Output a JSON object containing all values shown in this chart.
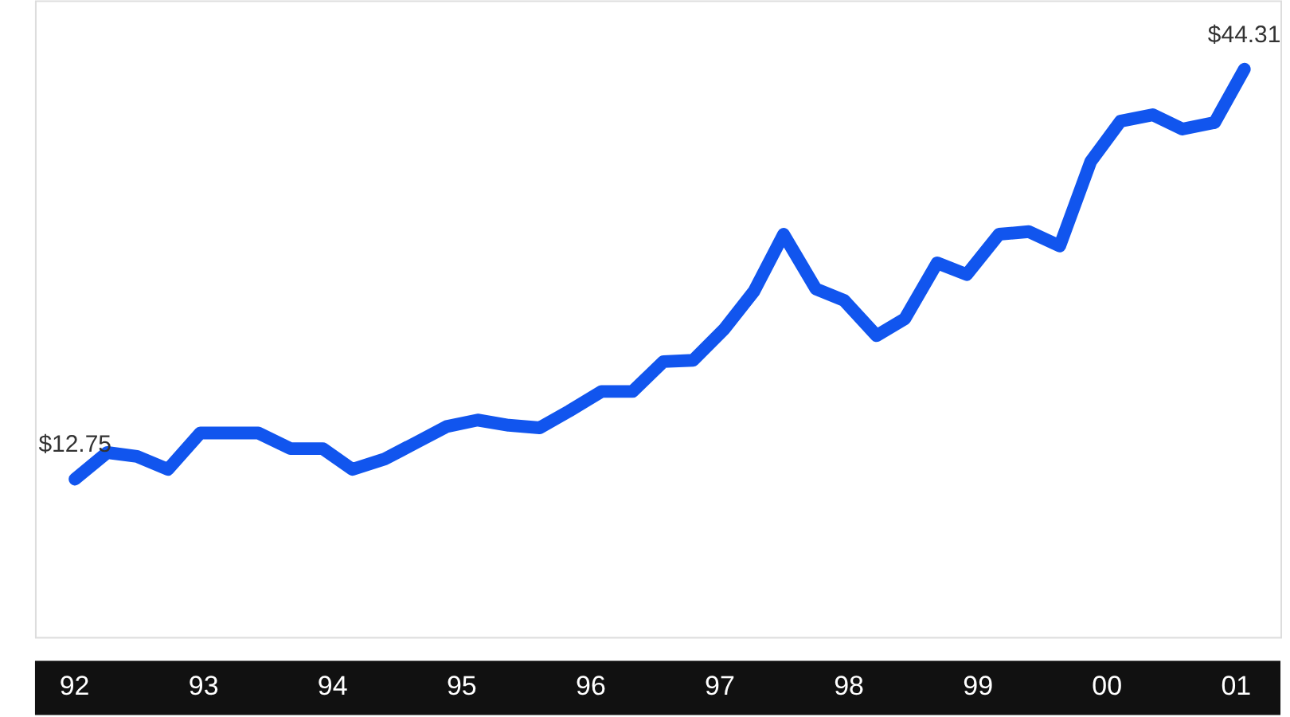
{
  "chart_data": {
    "type": "line",
    "x": [
      1992.01,
      1992.26,
      1992.49,
      1992.73,
      1992.98,
      1993.21,
      1993.43,
      1993.68,
      1993.93,
      1994.16,
      1994.41,
      1994.66,
      1994.89,
      1995.13,
      1995.37,
      1995.61,
      1995.84,
      1996.09,
      1996.33,
      1996.57,
      1996.8,
      1997.04,
      1997.27,
      1997.5,
      1997.75,
      1997.97,
      1998.22,
      1998.44,
      1998.69,
      1998.92,
      1999.17,
      1999.4,
      1999.64,
      1999.88,
      2000.11,
      2000.36,
      2000.59,
      2000.84,
      2001.07
    ],
    "series": [
      {
        "color": "#1155ee",
        "values": [
          12.75,
          14.8,
          14.5,
          13.5,
          16.3,
          16.3,
          16.3,
          15.1,
          15.1,
          13.5,
          14.3,
          15.6,
          16.8,
          17.3,
          16.9,
          16.7,
          18.0,
          19.5,
          19.5,
          21.8,
          21.9,
          24.3,
          27.2,
          31.6,
          27.4,
          26.5,
          23.8,
          25.1,
          29.4,
          28.5,
          31.6,
          31.8,
          30.7,
          37.2,
          40.3,
          40.8,
          39.7,
          40.2,
          44.31
        ],
        "value_labels": [
          "$12.75",
          null,
          null,
          null,
          null,
          null,
          null,
          null,
          null,
          null,
          null,
          null,
          null,
          null,
          null,
          null,
          null,
          null,
          null,
          null,
          null,
          null,
          null,
          null,
          null,
          null,
          null,
          null,
          null,
          null,
          null,
          null,
          null,
          null,
          null,
          null,
          null,
          null,
          "$44.31"
        ]
      }
    ],
    "xlim": [
      1991.7,
      2001.35
    ],
    "xticks": [
      {
        "value": 1992,
        "label": "92"
      },
      {
        "value": 1993,
        "label": "93"
      },
      {
        "value": 1994,
        "label": "94"
      },
      {
        "value": 1995,
        "label": "95"
      },
      {
        "value": 1996,
        "label": "96"
      },
      {
        "value": 1997,
        "label": "97"
      },
      {
        "value": 1998,
        "label": "98"
      },
      {
        "value": 1999,
        "label": "99"
      },
      {
        "value": 2000,
        "label": "00"
      },
      {
        "value": 2001,
        "label": "01"
      }
    ],
    "ylim": [
      0.6,
      49.6
    ],
    "tick_labels": "x",
    "grid": false,
    "marker": "none",
    "line_style": "solid"
  }
}
